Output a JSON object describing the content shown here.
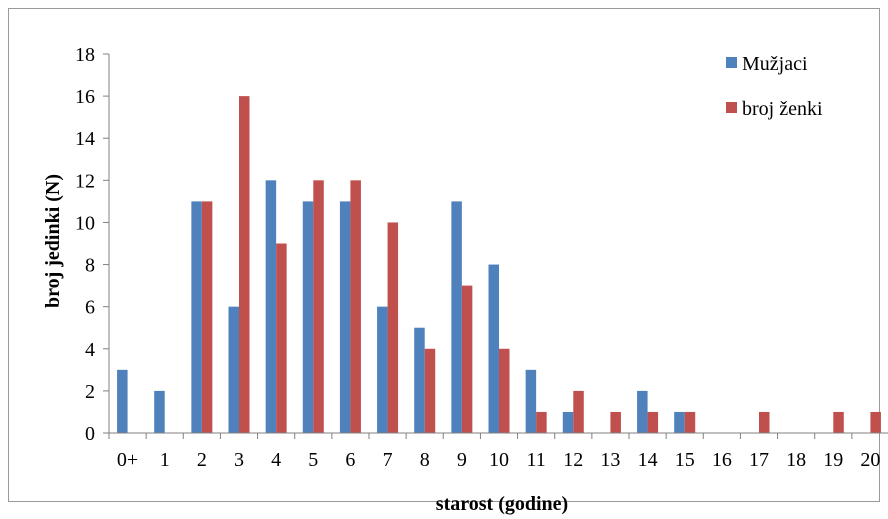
{
  "chart_data": {
    "type": "bar",
    "title": "",
    "xlabel": "starost (godine)",
    "ylabel": "broj jedinki (N)",
    "ylim": [
      0,
      18
    ],
    "yticks": [
      0,
      2,
      4,
      6,
      8,
      10,
      12,
      14,
      16,
      18
    ],
    "categories": [
      "0+",
      "1",
      "2",
      "3",
      "4",
      "5",
      "6",
      "7",
      "8",
      "9",
      "10",
      "11",
      "12",
      "13",
      "14",
      "15",
      "16",
      "17",
      "18",
      "19",
      "20"
    ],
    "series": [
      {
        "name": "Mužjaci",
        "color": "#4f81bd",
        "values": [
          3,
          2,
          11,
          6,
          12,
          11,
          11,
          6,
          5,
          11,
          8,
          3,
          1,
          0,
          2,
          1,
          0,
          0,
          0,
          0,
          0
        ]
      },
      {
        "name": "broj ženki",
        "color": "#c0504d",
        "values": [
          0,
          0,
          11,
          16,
          9,
          12,
          12,
          10,
          4,
          7,
          4,
          1,
          2,
          1,
          1,
          1,
          0,
          1,
          0,
          1,
          1
        ]
      }
    ],
    "grid": false,
    "legend_position": "top-right"
  }
}
